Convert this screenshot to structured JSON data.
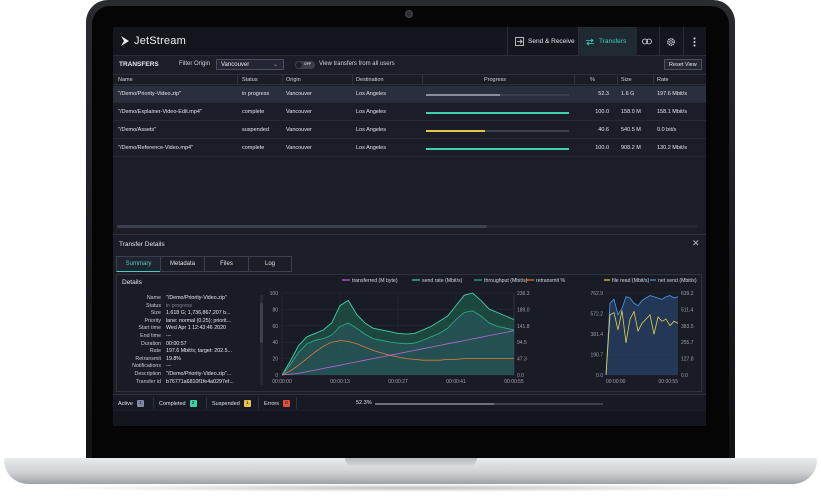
{
  "app": {
    "title": "JetStream",
    "nav": {
      "send_receive": "Send & Receive",
      "transfers": "Transfers"
    }
  },
  "toolbar": {
    "title": "TRANSFERS",
    "filter_label": "Filter Origin",
    "filter_value": "Vancouver",
    "toggle_state": "OFF",
    "toggle_label": "View transfers from all users",
    "reset_label": "Reset View"
  },
  "table": {
    "columns": {
      "name": "Name",
      "status": "Status",
      "origin": "Origin",
      "destination": "Destination",
      "progress": "Progress",
      "percent": "%",
      "size": "Size",
      "rate": "Rate"
    },
    "rows": [
      {
        "name": "\"/Demo/Priority-Video.zip\"",
        "status": "in progress",
        "origin": "Vancouver",
        "destination": "Los Angeles",
        "progress": 0.52,
        "progress_color": "#8a8f9c",
        "percent": "52.3",
        "size": "1.6 G",
        "rate": "197.6 Mbit/s"
      },
      {
        "name": "\"/Demo/Explainer-Video-Edit.mp4\"",
        "status": "complete",
        "origin": "Vancouver",
        "destination": "Los Angeles",
        "progress": 1.0,
        "progress_color": "#3fd1a8",
        "percent": "100.0",
        "size": "158.0 M",
        "rate": "158.1 Mbit/s"
      },
      {
        "name": "\"/Demo/Assets\"",
        "status": "suspended",
        "origin": "Vancouver",
        "destination": "Los Angeles",
        "progress": 0.41,
        "progress_color": "#e6c34a",
        "percent": "40.6",
        "size": "540.5 M",
        "rate": "0.0 bit/s"
      },
      {
        "name": "\"/Demo/Reference-Video.mp4\"",
        "status": "complete",
        "origin": "Vancouver",
        "destination": "Los Angeles",
        "progress": 1.0,
        "progress_color": "#3fd1a8",
        "percent": "100.0",
        "size": "908.2 M",
        "rate": "130.2 Mbit/s"
      }
    ]
  },
  "details": {
    "title": "Transfer Details",
    "tabs": [
      "Summary",
      "Metadata",
      "Files",
      "Log"
    ],
    "section_title": "Details",
    "fields": [
      {
        "label": "Name",
        "value": "\"/Demo/Priority-Video.zip\""
      },
      {
        "label": "Status",
        "value": "in progress"
      },
      {
        "label": "Size",
        "value": "1.618 G; 1,736,867,207 b..."
      },
      {
        "label": "Priority",
        "value": "lane: normal (0.25); priorit..."
      },
      {
        "label": "Start time",
        "value": "Wed Apr 1 12:43:46 2020"
      },
      {
        "label": "End time",
        "value": "---"
      },
      {
        "label": "Duration",
        "value": "00:00:57"
      },
      {
        "label": "Rate",
        "value": "197.6 Mbit/s; target: 202.5..."
      },
      {
        "label": "Retransmit",
        "value": "19.8%"
      },
      {
        "label": "Notifications",
        "value": "---"
      },
      {
        "label": "Description",
        "value": "\"/Demo/Priority-Video.zip\"..."
      },
      {
        "label": "Transfer id",
        "value": "b76771a6810f1fe4a0297ef..."
      }
    ]
  },
  "chart_data": [
    {
      "type": "area",
      "legend": [
        "transferred (M byte)",
        "send rate (Mbit/s)",
        "throughput (Mbit/s)",
        "retransmit %"
      ],
      "colors": {
        "transferred": "#b666d8",
        "send_rate": "#3fd1a8",
        "throughput": "#2fb08a",
        "retransmit": "#e07a3a"
      },
      "x_ticks": [
        "00:00:00",
        "00:00:13",
        "00:00:27",
        "00:00:41",
        "00:00:55"
      ],
      "y_left_ticks": [
        "100",
        "80",
        "60",
        "40",
        "20",
        "0"
      ],
      "y_right_ticks": [
        "236.3",
        "189.0",
        "141.8",
        "94.5",
        "47.3",
        "0.0"
      ],
      "ylim_left": [
        0,
        100
      ],
      "ylim_right": [
        0,
        236.3
      ],
      "x": [
        0,
        2,
        4,
        6,
        8,
        10,
        12,
        14,
        16,
        18,
        20,
        22,
        24,
        26,
        28,
        30,
        32,
        34,
        36,
        38,
        40,
        42,
        44,
        46,
        48,
        50,
        52,
        54,
        56
      ],
      "series": [
        {
          "name": "send rate (Mbit/s)",
          "values": [
            0,
            40,
            85,
            110,
            120,
            130,
            150,
            200,
            215,
            175,
            150,
            135,
            130,
            125,
            120,
            118,
            120,
            130,
            140,
            155,
            170,
            200,
            230,
            236,
            215,
            190,
            180,
            170,
            160
          ]
        },
        {
          "name": "throughput (Mbit/s)",
          "values": [
            0,
            30,
            65,
            90,
            100,
            105,
            115,
            140,
            150,
            135,
            118,
            105,
            100,
            95,
            92,
            90,
            92,
            100,
            110,
            120,
            135,
            160,
            180,
            185,
            170,
            150,
            140,
            135,
            130
          ]
        },
        {
          "name": "retransmit %",
          "values": [
            0,
            5,
            12,
            20,
            28,
            35,
            40,
            42,
            41,
            38,
            34,
            30,
            27,
            24,
            22,
            20,
            19,
            18,
            18,
            18,
            19,
            19,
            20,
            20,
            20,
            20,
            20,
            20,
            20
          ]
        },
        {
          "name": "transferred (M byte)",
          "values": [
            0,
            1,
            2,
            4,
            6,
            8,
            10,
            12,
            14,
            16,
            18,
            20,
            22,
            24,
            26,
            28,
            30,
            32,
            34,
            36,
            38,
            40,
            42,
            44,
            46,
            48,
            50,
            52,
            54
          ]
        }
      ]
    },
    {
      "type": "line",
      "legend": [
        "file read (Mbit/s)",
        "net send (Mbit/s)"
      ],
      "colors": {
        "file_read": "#e6d24a",
        "net_send": "#4a9be6"
      },
      "x_ticks": [
        "00:00:00",
        "00:00:55"
      ],
      "y_left_ticks": [
        "762.9",
        "572.2",
        "381.4",
        "190.7",
        "0.0"
      ],
      "y_right_ticks": [
        "639.2",
        "511.4",
        "383.5",
        "255.7",
        "127.8",
        "0.0"
      ],
      "ylim_left": [
        0,
        762.9
      ],
      "ylim_right": [
        0,
        639.2
      ],
      "series": [
        {
          "name": "file read (Mbit/s)",
          "values": [
            0,
            560,
            580,
            420,
            600,
            300,
            520,
            590,
            410,
            480,
            520,
            560,
            380,
            540,
            500,
            520,
            460,
            500,
            480
          ]
        },
        {
          "name": "net send (Mbit/s)",
          "values": [
            0,
            560,
            590,
            470,
            520,
            610,
            600,
            560,
            540,
            580,
            600,
            620,
            610,
            600,
            590,
            610,
            620,
            600,
            610
          ]
        }
      ]
    }
  ],
  "statusbar": {
    "active_label": "Active",
    "active_count": "1",
    "completed_label": "Completed",
    "completed_count": "2",
    "suspended_label": "Suspended",
    "suspended_count": "1",
    "errors_label": "Errors",
    "errors_count": "0",
    "overall_percent": "52.3%",
    "overall_progress": 0.523
  }
}
